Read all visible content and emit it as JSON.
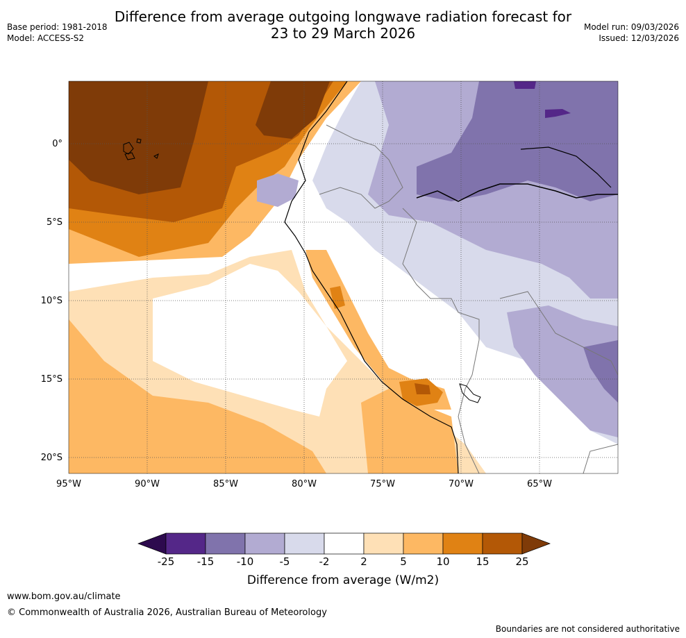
{
  "title": {
    "line1": "Difference from average outgoing longwave radiation forecast for",
    "line2": "23 to 29 March 2026"
  },
  "meta_left": {
    "base_period": "Base period: 1981-2018",
    "model": "Model: ACCESS-S2"
  },
  "meta_right": {
    "model_run": "Model run: 09/03/2026",
    "issued": "Issued: 12/03/2026"
  },
  "map": {
    "lat_labels": [
      "0°",
      "5°S",
      "10°S",
      "15°S",
      "20°S"
    ],
    "lon_labels": [
      "95°W",
      "90°W",
      "85°W",
      "80°W",
      "75°W",
      "70°W",
      "65°W"
    ]
  },
  "colorbar": {
    "ticks": [
      "-25",
      "-15",
      "-10",
      "-5",
      "-2",
      "2",
      "5",
      "10",
      "15",
      "25"
    ],
    "colors": [
      "#2d0a4e",
      "#542788",
      "#8073ac",
      "#b2abd2",
      "#d8daeb",
      "#ffffff",
      "#fee0b6",
      "#fdb863",
      "#e08214",
      "#b35806",
      "#7f3b08"
    ],
    "label": "Difference from average (W/m2)"
  },
  "footer": {
    "url": "www.bom.gov.au/climate",
    "copyright": "© Commonwealth of Australia 2026, Australian Bureau of Meteorology",
    "disclaimer": "Boundaries are not considered authoritative"
  }
}
